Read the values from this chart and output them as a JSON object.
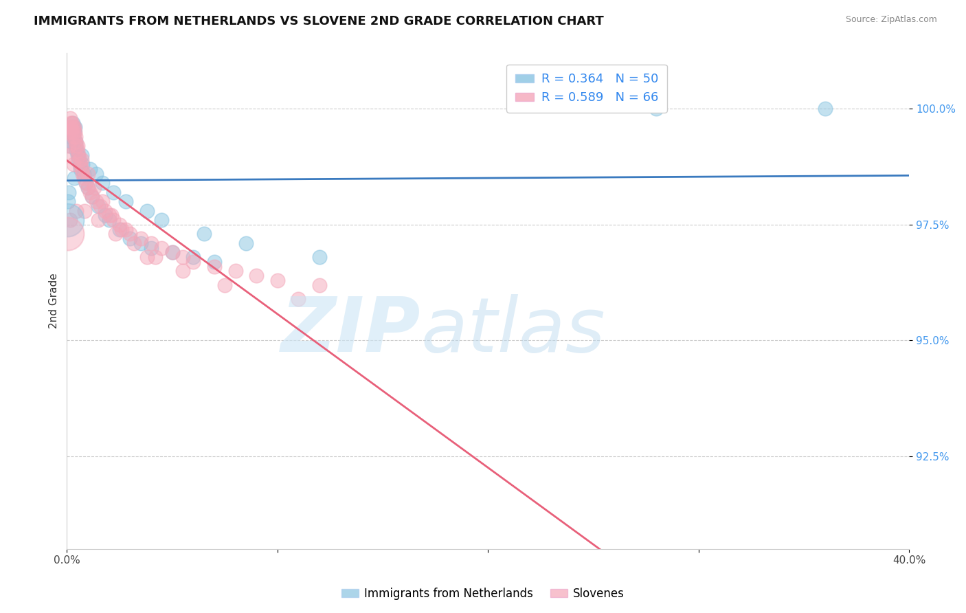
{
  "title": "IMMIGRANTS FROM NETHERLANDS VS SLOVENE 2ND GRADE CORRELATION CHART",
  "source": "Source: ZipAtlas.com",
  "ylabel": "2nd Grade",
  "xlim": [
    0.0,
    40.0
  ],
  "ylim": [
    90.5,
    101.2
  ],
  "yticks": [
    92.5,
    95.0,
    97.5,
    100.0
  ],
  "ytick_labels": [
    "92.5%",
    "95.0%",
    "97.5%",
    "100.0%"
  ],
  "blue_R": 0.364,
  "blue_N": 50,
  "pink_R": 0.589,
  "pink_N": 66,
  "blue_color": "#89c4e1",
  "pink_color": "#f4a7b9",
  "blue_line_color": "#3a7abf",
  "pink_line_color": "#e8607a",
  "legend_label_blue": "Immigrants from Netherlands",
  "legend_label_pink": "Slovenes",
  "blue_x": [
    0.05,
    0.1,
    0.12,
    0.15,
    0.18,
    0.2,
    0.22,
    0.25,
    0.28,
    0.3,
    0.32,
    0.35,
    0.38,
    0.4,
    0.42,
    0.45,
    0.5,
    0.55,
    0.6,
    0.65,
    0.7,
    0.8,
    0.9,
    1.0,
    1.2,
    1.5,
    1.8,
    2.0,
    2.5,
    3.0,
    3.5,
    4.0,
    5.0,
    6.0,
    7.0,
    0.35,
    0.55,
    0.75,
    1.1,
    1.4,
    1.7,
    2.2,
    2.8,
    3.8,
    4.5,
    6.5,
    8.5,
    12.0,
    28.0,
    36.0
  ],
  "blue_y": [
    98.0,
    98.2,
    99.2,
    99.5,
    99.6,
    99.4,
    99.3,
    99.5,
    99.7,
    99.6,
    99.4,
    99.5,
    99.6,
    99.3,
    99.2,
    99.1,
    99.0,
    98.9,
    98.8,
    98.7,
    99.0,
    98.6,
    98.4,
    98.3,
    98.1,
    97.9,
    97.7,
    97.6,
    97.4,
    97.2,
    97.1,
    97.0,
    96.9,
    96.8,
    96.7,
    98.5,
    99.0,
    98.8,
    98.7,
    98.6,
    98.4,
    98.2,
    98.0,
    97.8,
    97.6,
    97.3,
    97.1,
    96.8,
    100.0,
    100.0
  ],
  "pink_x": [
    0.05,
    0.08,
    0.1,
    0.12,
    0.15,
    0.18,
    0.2,
    0.22,
    0.25,
    0.28,
    0.3,
    0.32,
    0.35,
    0.38,
    0.4,
    0.42,
    0.45,
    0.5,
    0.55,
    0.6,
    0.65,
    0.7,
    0.75,
    0.8,
    0.9,
    1.0,
    1.1,
    1.2,
    1.4,
    1.6,
    1.8,
    2.0,
    2.2,
    2.5,
    2.8,
    3.0,
    3.5,
    4.0,
    4.5,
    5.0,
    5.5,
    6.0,
    7.0,
    8.0,
    9.0,
    10.0,
    12.0,
    0.3,
    0.5,
    0.7,
    1.0,
    1.3,
    1.7,
    2.1,
    2.6,
    3.2,
    4.2,
    5.5,
    7.5,
    11.0,
    0.15,
    0.45,
    0.85,
    1.5,
    2.3,
    3.8
  ],
  "pink_y": [
    99.0,
    99.2,
    99.5,
    99.6,
    99.8,
    99.7,
    99.6,
    99.5,
    99.7,
    99.6,
    99.5,
    99.4,
    99.6,
    99.5,
    99.4,
    99.3,
    99.2,
    99.1,
    99.0,
    98.9,
    98.8,
    98.7,
    98.6,
    98.5,
    98.4,
    98.3,
    98.2,
    98.1,
    98.0,
    97.9,
    97.8,
    97.7,
    97.6,
    97.5,
    97.4,
    97.3,
    97.2,
    97.1,
    97.0,
    96.9,
    96.8,
    96.7,
    96.6,
    96.5,
    96.4,
    96.3,
    96.2,
    98.8,
    99.2,
    98.9,
    98.6,
    98.3,
    98.0,
    97.7,
    97.4,
    97.1,
    96.8,
    96.5,
    96.2,
    95.9,
    97.6,
    97.8,
    97.8,
    97.6,
    97.3,
    96.8
  ],
  "big_blue_x": [
    0.03
  ],
  "big_blue_y": [
    97.6
  ],
  "big_pink_x": [
    0.03
  ],
  "big_pink_y": [
    97.3
  ],
  "background_color": "#ffffff",
  "grid_color": "#cccccc"
}
